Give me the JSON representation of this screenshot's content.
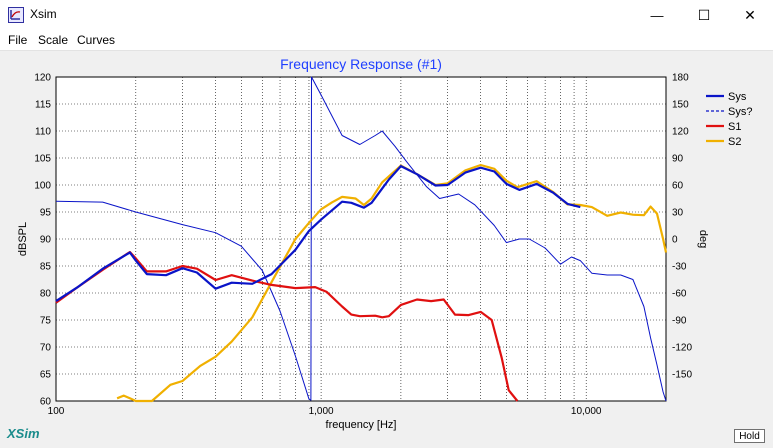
{
  "window": {
    "title": "Xsim",
    "minimize": "—",
    "maximize": "☐",
    "close": "✕"
  },
  "menu": [
    {
      "label": "File"
    },
    {
      "label": "Scale"
    },
    {
      "label": "Curves"
    }
  ],
  "brand": {
    "label": "XSim",
    "color": "#1a8c8c"
  },
  "hold_button": {
    "label": "Hold"
  },
  "chart_data": {
    "type": "line",
    "title": "Frequency Response (#1)",
    "title_color": "#1f3fff",
    "xlabel": "frequency [Hz]",
    "ylabel_left": "dBSPL",
    "ylabel_right": "deg",
    "xscale": "log",
    "xlim": [
      100,
      20000
    ],
    "ylim_left": [
      60,
      120
    ],
    "ylim_right": [
      -180,
      180
    ],
    "x_ticks": [
      "100",
      "1,000",
      "10,000"
    ],
    "y_left_ticks": [
      "120",
      "115",
      "110",
      "105",
      "100",
      "95",
      "90",
      "85",
      "80",
      "75",
      "70",
      "65",
      "60"
    ],
    "y_right_ticks": [
      "180",
      "150",
      "120",
      "90",
      "60",
      "30",
      "0",
      "-30",
      "-60",
      "-90",
      "-120",
      "-150"
    ],
    "grid": true,
    "legend_position": "right",
    "series": [
      {
        "name": "Sys",
        "color": "#0a14c8",
        "style": "solid",
        "axis": "left",
        "points": [
          [
            100,
            78.5
          ],
          [
            120,
            81
          ],
          [
            150,
            84.5
          ],
          [
            190,
            87.5
          ],
          [
            200,
            86
          ],
          [
            220,
            83.5
          ],
          [
            260,
            83.3
          ],
          [
            300,
            84.6
          ],
          [
            340,
            83.8
          ],
          [
            400,
            80.8
          ],
          [
            460,
            81.9
          ],
          [
            550,
            81.7
          ],
          [
            650,
            83.5
          ],
          [
            800,
            88
          ],
          [
            900,
            91.5
          ],
          [
            1000,
            93.6
          ],
          [
            1200,
            96.9
          ],
          [
            1300,
            96.7
          ],
          [
            1450,
            95.8
          ],
          [
            1550,
            96.7
          ],
          [
            1800,
            101
          ],
          [
            2000,
            103.5
          ],
          [
            2300,
            102
          ],
          [
            2700,
            99.9
          ],
          [
            3000,
            100
          ],
          [
            3500,
            102.3
          ],
          [
            4000,
            103.2
          ],
          [
            4500,
            102.5
          ],
          [
            5000,
            100.2
          ],
          [
            5600,
            99.1
          ],
          [
            6500,
            100.2
          ],
          [
            7500,
            98.6
          ],
          [
            8500,
            96.5
          ],
          [
            9500,
            95.9
          ]
        ]
      },
      {
        "name": "Sys?",
        "color": "#0a14c8",
        "style": "dashed",
        "axis": "right",
        "points": [
          [
            100,
            42
          ],
          [
            150,
            41
          ],
          [
            200,
            30
          ],
          [
            300,
            16
          ],
          [
            400,
            7
          ],
          [
            500,
            -8
          ],
          [
            600,
            -35
          ],
          [
            700,
            -80
          ],
          [
            800,
            -130
          ],
          [
            900,
            -178
          ],
          [
            915,
            -179
          ],
          [
            920,
            180
          ],
          [
            1000,
            160
          ],
          [
            1200,
            115
          ],
          [
            1400,
            105
          ],
          [
            1600,
            115
          ],
          [
            1700,
            120
          ],
          [
            1900,
            103
          ],
          [
            2100,
            86
          ],
          [
            2500,
            58
          ],
          [
            2800,
            45
          ],
          [
            3300,
            50
          ],
          [
            3800,
            38
          ],
          [
            4500,
            15
          ],
          [
            5000,
            -4
          ],
          [
            5600,
            0
          ],
          [
            6100,
            0
          ],
          [
            7000,
            -10
          ],
          [
            8000,
            -28
          ],
          [
            8800,
            -20
          ],
          [
            9500,
            -24
          ],
          [
            10500,
            -38
          ],
          [
            12000,
            -40
          ],
          [
            13500,
            -40
          ],
          [
            15000,
            -45
          ],
          [
            16500,
            -75
          ],
          [
            17500,
            -110
          ],
          [
            18500,
            -140
          ],
          [
            19500,
            -170
          ],
          [
            20000,
            -180
          ]
        ]
      },
      {
        "name": "S1",
        "color": "#e01010",
        "style": "solid",
        "axis": "left",
        "points": [
          [
            100,
            78.2
          ],
          [
            120,
            81
          ],
          [
            150,
            84.3
          ],
          [
            190,
            87.6
          ],
          [
            200,
            86.4
          ],
          [
            220,
            84
          ],
          [
            260,
            84
          ],
          [
            300,
            85
          ],
          [
            340,
            84.5
          ],
          [
            400,
            82.4
          ],
          [
            460,
            83.3
          ],
          [
            550,
            82.3
          ],
          [
            650,
            81.5
          ],
          [
            800,
            80.9
          ],
          [
            950,
            81.1
          ],
          [
            1050,
            80.2
          ],
          [
            1200,
            77.5
          ],
          [
            1300,
            76
          ],
          [
            1400,
            75.7
          ],
          [
            1600,
            75.8
          ],
          [
            1700,
            75.5
          ],
          [
            1800,
            75.7
          ],
          [
            2000,
            77.8
          ],
          [
            2300,
            78.8
          ],
          [
            2600,
            78.5
          ],
          [
            2900,
            78.8
          ],
          [
            3200,
            76
          ],
          [
            3600,
            75.9
          ],
          [
            4000,
            76.5
          ],
          [
            4400,
            75
          ],
          [
            4800,
            68
          ],
          [
            5100,
            62
          ],
          [
            5500,
            59
          ]
        ]
      },
      {
        "name": "S2",
        "color": "#f0b000",
        "style": "solid",
        "axis": "left",
        "points": [
          [
            170,
            60.5
          ],
          [
            180,
            61
          ],
          [
            190,
            60.5
          ],
          [
            200,
            59
          ],
          [
            230,
            60
          ],
          [
            270,
            63
          ],
          [
            300,
            63.7
          ],
          [
            350,
            66.5
          ],
          [
            400,
            68.2
          ],
          [
            460,
            71
          ],
          [
            550,
            75.5
          ],
          [
            650,
            82
          ],
          [
            800,
            90
          ],
          [
            900,
            93
          ],
          [
            1000,
            95.5
          ],
          [
            1100,
            96.8
          ],
          [
            1200,
            97.8
          ],
          [
            1350,
            97.5
          ],
          [
            1450,
            96.3
          ],
          [
            1550,
            97.5
          ],
          [
            1700,
            100.5
          ],
          [
            2000,
            103.6
          ],
          [
            2300,
            102
          ],
          [
            2700,
            100
          ],
          [
            3000,
            100.3
          ],
          [
            3500,
            102.7
          ],
          [
            4000,
            103.7
          ],
          [
            4500,
            103
          ],
          [
            5000,
            100.8
          ],
          [
            5500,
            99.6
          ],
          [
            6500,
            100.7
          ],
          [
            7500,
            98.7
          ],
          [
            8500,
            96.4
          ],
          [
            9500,
            96.3
          ],
          [
            10500,
            95.9
          ],
          [
            12000,
            94.3
          ],
          [
            13500,
            94.9
          ],
          [
            15000,
            94.5
          ],
          [
            16500,
            94.4
          ],
          [
            17500,
            96
          ],
          [
            18500,
            94.7
          ],
          [
            19500,
            90
          ],
          [
            20000,
            87.5
          ]
        ]
      }
    ]
  }
}
